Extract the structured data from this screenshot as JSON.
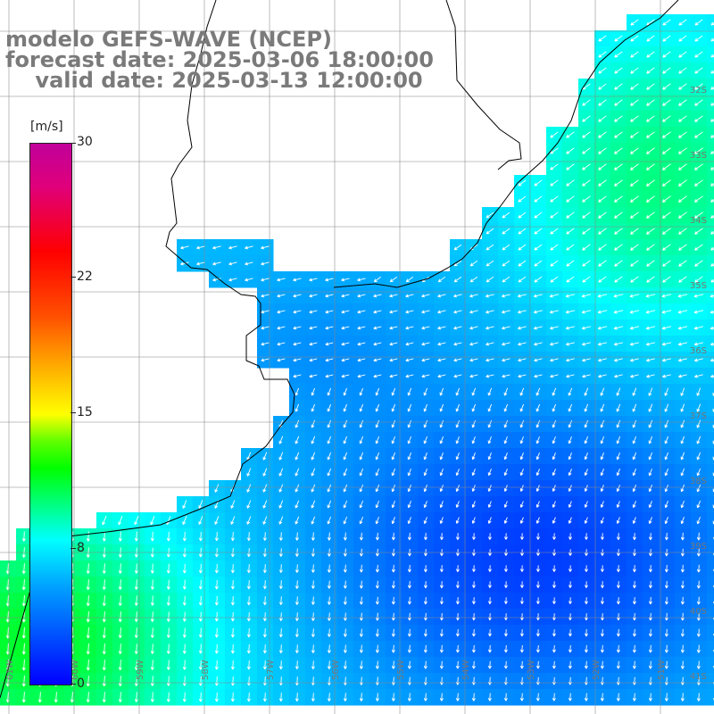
{
  "title": {
    "line1": "modelo GEFS-WAVE (NCEP)",
    "line2": "forecast date: 2025-03-06 18:00:00",
    "line3": "    valid date: 2025-03-13 12:00:00"
  },
  "colorbar": {
    "unit": "[m/s]",
    "ticks": [
      "30",
      "22",
      "15",
      "8",
      "0"
    ],
    "tick_values": [
      30,
      22,
      15,
      8,
      0
    ],
    "min": 0,
    "max": 30
  },
  "map": {
    "lon_range": [
      -61.5,
      -50.5
    ],
    "lat_range": [
      -41.5,
      -31.25
    ],
    "grid_step_deg": 1,
    "lat_labels": [
      "32S",
      "33S",
      "34S",
      "35S",
      "36S",
      "37S",
      "38S",
      "39S",
      "40S",
      "41S"
    ],
    "lon_labels": [
      "61W",
      "60W",
      "59W",
      "58W",
      "57W",
      "56W",
      "55W",
      "54W",
      "53W",
      "52W",
      "51W"
    ],
    "colors": {
      "land": "#ffffff",
      "coast": "#000000",
      "grid": "#888888",
      "arrow": "#ffffff"
    }
  }
}
